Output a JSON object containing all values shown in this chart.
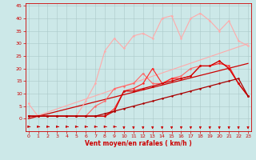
{
  "xlabel": "Vent moyen/en rafales ( km/h )",
  "x_values": [
    0,
    1,
    2,
    3,
    4,
    5,
    6,
    7,
    8,
    9,
    10,
    11,
    12,
    13,
    14,
    15,
    16,
    17,
    18,
    19,
    20,
    21,
    22,
    23
  ],
  "series": [
    {
      "name": "light_pink_jagged",
      "color": "#ffaaaa",
      "linewidth": 0.8,
      "marker": "o",
      "markersize": 1.8,
      "y": [
        6,
        1,
        1,
        1,
        1,
        1,
        7,
        14,
        27,
        32,
        28,
        33,
        34,
        32,
        40,
        41,
        32,
        40,
        42,
        39,
        35,
        39,
        31,
        29
      ]
    },
    {
      "name": "light_pink_straight",
      "color": "#ffaaaa",
      "linewidth": 0.8,
      "marker": null,
      "markersize": 0,
      "y": [
        0,
        1.3,
        2.6,
        3.9,
        5.2,
        6.5,
        7.8,
        9.1,
        10.4,
        11.7,
        13.0,
        14.3,
        15.6,
        16.9,
        18.2,
        19.5,
        20.8,
        22.1,
        23.4,
        24.7,
        26.0,
        27.3,
        28.6,
        29.9
      ]
    },
    {
      "name": "medium_red_jagged",
      "color": "#ff6666",
      "linewidth": 0.8,
      "marker": "o",
      "markersize": 1.8,
      "y": [
        1,
        1,
        1,
        1,
        1,
        1,
        1,
        5,
        7,
        12,
        13,
        14,
        18,
        14,
        14,
        16,
        17,
        20,
        21,
        21,
        23,
        20,
        14,
        9
      ]
    },
    {
      "name": "red_jagged1",
      "color": "#ff2222",
      "linewidth": 0.8,
      "marker": "o",
      "markersize": 1.8,
      "y": [
        1,
        1,
        1,
        1,
        1,
        1,
        1,
        1,
        1,
        4,
        11,
        12,
        14,
        20,
        14,
        16,
        16,
        17,
        21,
        21,
        22,
        21,
        14,
        9
      ]
    },
    {
      "name": "dark_red_jagged",
      "color": "#cc0000",
      "linewidth": 0.9,
      "marker": "o",
      "markersize": 1.8,
      "y": [
        1,
        1,
        1,
        1,
        1,
        1,
        1,
        1,
        1,
        3,
        11,
        11,
        12,
        13,
        14,
        15,
        16,
        17,
        21,
        21,
        23,
        20,
        14,
        9
      ]
    },
    {
      "name": "dark_red_straight",
      "color": "#cc0000",
      "linewidth": 0.9,
      "marker": null,
      "markersize": 0,
      "y": [
        0,
        0.96,
        1.91,
        2.87,
        3.83,
        4.78,
        5.74,
        6.7,
        7.65,
        8.61,
        9.57,
        10.52,
        11.48,
        12.43,
        13.39,
        14.35,
        15.3,
        16.26,
        17.22,
        18.17,
        19.13,
        20.09,
        21.04,
        22.0
      ]
    },
    {
      "name": "darkest_red_flat",
      "color": "#aa0000",
      "linewidth": 0.9,
      "marker": "o",
      "markersize": 1.8,
      "y": [
        1,
        1,
        1,
        1,
        1,
        1,
        1,
        1,
        2,
        3,
        4,
        5,
        6,
        7,
        8,
        9,
        10,
        11,
        12,
        13,
        14,
        15,
        16,
        9
      ]
    }
  ],
  "arrow_dirs": [
    "r",
    "r",
    "r",
    "r",
    "r",
    "r",
    "r",
    "r",
    "r",
    "r",
    "d",
    "d",
    "d",
    "d",
    "d",
    "d",
    "d",
    "d",
    "d",
    "d",
    "d",
    "d",
    "d",
    "d"
  ],
  "arrow_color": "#cc0000",
  "ylim": [
    0,
    46
  ],
  "xlim": [
    -0.3,
    23.3
  ],
  "yticks": [
    0,
    5,
    10,
    15,
    20,
    25,
    30,
    35,
    40,
    45
  ],
  "xticks": [
    0,
    1,
    2,
    3,
    4,
    5,
    6,
    7,
    8,
    9,
    10,
    11,
    12,
    13,
    14,
    15,
    16,
    17,
    18,
    19,
    20,
    21,
    22,
    23
  ],
  "bg_color": "#cce8e8",
  "grid_color": "#aac8c8",
  "text_color": "#cc0000",
  "spine_color": "#cc0000",
  "tick_fontsize": 4.5,
  "xlabel_fontsize": 5.5
}
